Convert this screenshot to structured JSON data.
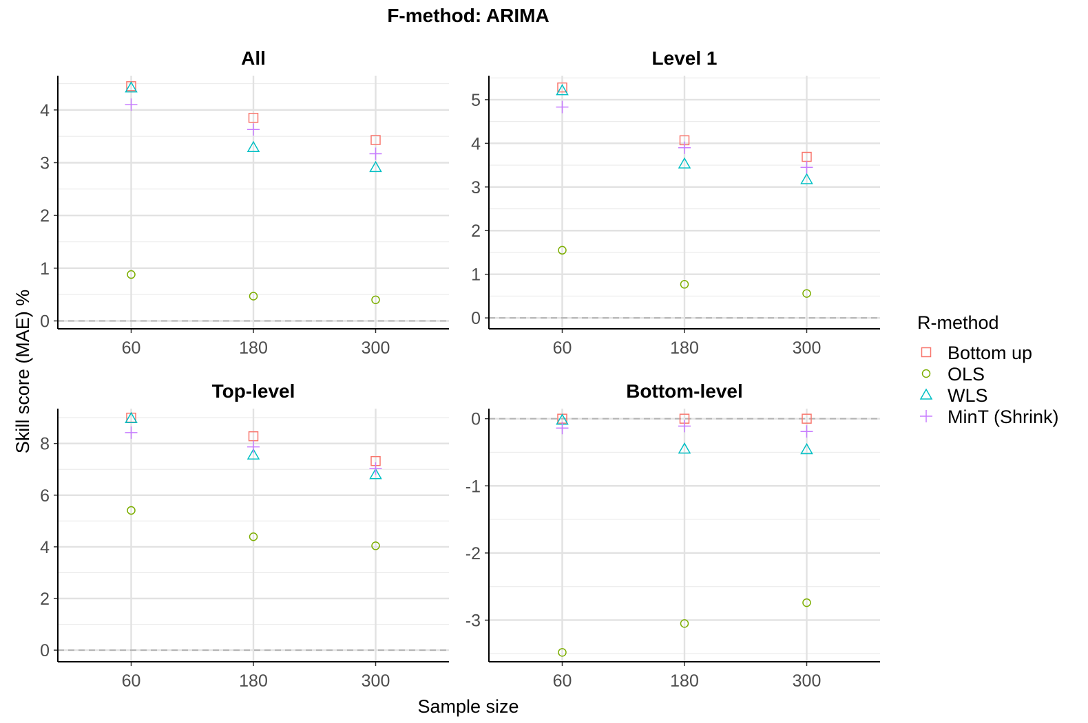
{
  "figure": {
    "title": "F-method: ARIMA",
    "xlabel": "Sample size",
    "ylabel": "Skill score (MAE) %"
  },
  "legend": {
    "title": "R-method",
    "placement": "right",
    "items": [
      {
        "name": "Bottom up",
        "color": "#F8766D",
        "shape": "square"
      },
      {
        "name": "OLS",
        "color": "#7CAE00",
        "shape": "circle"
      },
      {
        "name": "WLS",
        "color": "#00BFC4",
        "shape": "triangle"
      },
      {
        "name": "MinT (Shrink)",
        "color": "#C77CFF",
        "shape": "plus"
      }
    ]
  },
  "chart_data": [
    {
      "type": "scatter",
      "title": "All",
      "categories": [
        "60",
        "180",
        "300"
      ],
      "ylim": [
        -0.15,
        4.65
      ],
      "yticks": [
        0,
        1,
        2,
        3,
        4
      ],
      "reference_line": 0,
      "series": [
        {
          "name": "Bottom up",
          "values": [
            4.45,
            3.85,
            3.43
          ]
        },
        {
          "name": "OLS",
          "values": [
            0.88,
            0.47,
            0.4
          ]
        },
        {
          "name": "WLS",
          "values": [
            4.42,
            3.29,
            2.91
          ]
        },
        {
          "name": "MinT (Shrink)",
          "values": [
            4.1,
            3.63,
            3.17
          ]
        }
      ]
    },
    {
      "type": "scatter",
      "title": "Level 1",
      "categories": [
        "60",
        "180",
        "300"
      ],
      "ylim": [
        -0.25,
        5.55
      ],
      "yticks": [
        0,
        1,
        2,
        3,
        4,
        5
      ],
      "reference_line": 0,
      "series": [
        {
          "name": "Bottom up",
          "values": [
            5.28,
            4.07,
            3.69
          ]
        },
        {
          "name": "OLS",
          "values": [
            1.55,
            0.77,
            0.56
          ]
        },
        {
          "name": "WLS",
          "values": [
            5.21,
            3.53,
            3.17
          ]
        },
        {
          "name": "MinT (Shrink)",
          "values": [
            4.83,
            3.9,
            3.45
          ]
        }
      ]
    },
    {
      "type": "scatter",
      "title": "Top-level",
      "categories": [
        "60",
        "180",
        "300"
      ],
      "ylim": [
        -0.45,
        9.35
      ],
      "yticks": [
        0,
        2,
        4,
        6,
        8
      ],
      "reference_line": 0,
      "series": [
        {
          "name": "Bottom up",
          "values": [
            9.0,
            8.28,
            7.32
          ]
        },
        {
          "name": "OLS",
          "values": [
            5.41,
            4.39,
            4.04
          ]
        },
        {
          "name": "WLS",
          "values": [
            8.97,
            7.56,
            6.8
          ]
        },
        {
          "name": "MinT (Shrink)",
          "values": [
            8.42,
            7.87,
            7.03
          ]
        }
      ]
    },
    {
      "type": "scatter",
      "title": "Bottom-level",
      "categories": [
        "60",
        "180",
        "300"
      ],
      "ylim": [
        -3.62,
        0.15
      ],
      "yticks": [
        0,
        -1,
        -2,
        -3
      ],
      "reference_line": 0,
      "series": [
        {
          "name": "Bottom up",
          "values": [
            0.0,
            0.0,
            0.0
          ]
        },
        {
          "name": "OLS",
          "values": [
            -3.48,
            -3.05,
            -2.74
          ]
        },
        {
          "name": "WLS",
          "values": [
            -0.02,
            -0.45,
            -0.46
          ]
        },
        {
          "name": "MinT (Shrink)",
          "values": [
            -0.14,
            -0.11,
            -0.19
          ]
        }
      ]
    }
  ]
}
